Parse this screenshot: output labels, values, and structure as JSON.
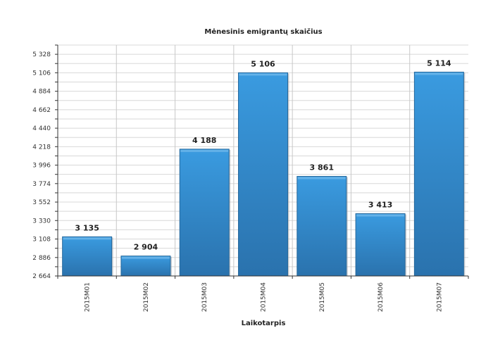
{
  "chart_data": {
    "type": "bar",
    "title": "Mėnesinis emigrantų skaičius",
    "xlabel": "Laikotarpis",
    "ylabel": "",
    "categories": [
      "2015M01",
      "2015M02",
      "2015M03",
      "2015M04",
      "2015M05",
      "2015M06",
      "2015M07"
    ],
    "values": [
      3135,
      2904,
      4188,
      5106,
      3861,
      3413,
      5114
    ],
    "value_labels": [
      "3 135",
      "2 904",
      "4 188",
      "5 106",
      "3 861",
      "3 413",
      "5 114"
    ],
    "ylim": [
      2664,
      5439
    ],
    "yticks": [
      2664,
      2886,
      3108,
      3330,
      3552,
      3774,
      3996,
      4218,
      4440,
      4662,
      4884,
      5106,
      5328
    ],
    "ytick_labels": [
      "2 664",
      "2 886",
      "3 108",
      "3 330",
      "3 552",
      "3 774",
      "3 996",
      "4 218",
      "4 440",
      "4 662",
      "4 884",
      "5 106",
      "5 328"
    ],
    "grid": true,
    "legend": "none",
    "colors": {
      "bar": "#2f87c8",
      "bar_light": "#3a9be0",
      "bar_dark": "#25689c",
      "grid": "#d8d8d8",
      "axis": "#333333"
    }
  }
}
